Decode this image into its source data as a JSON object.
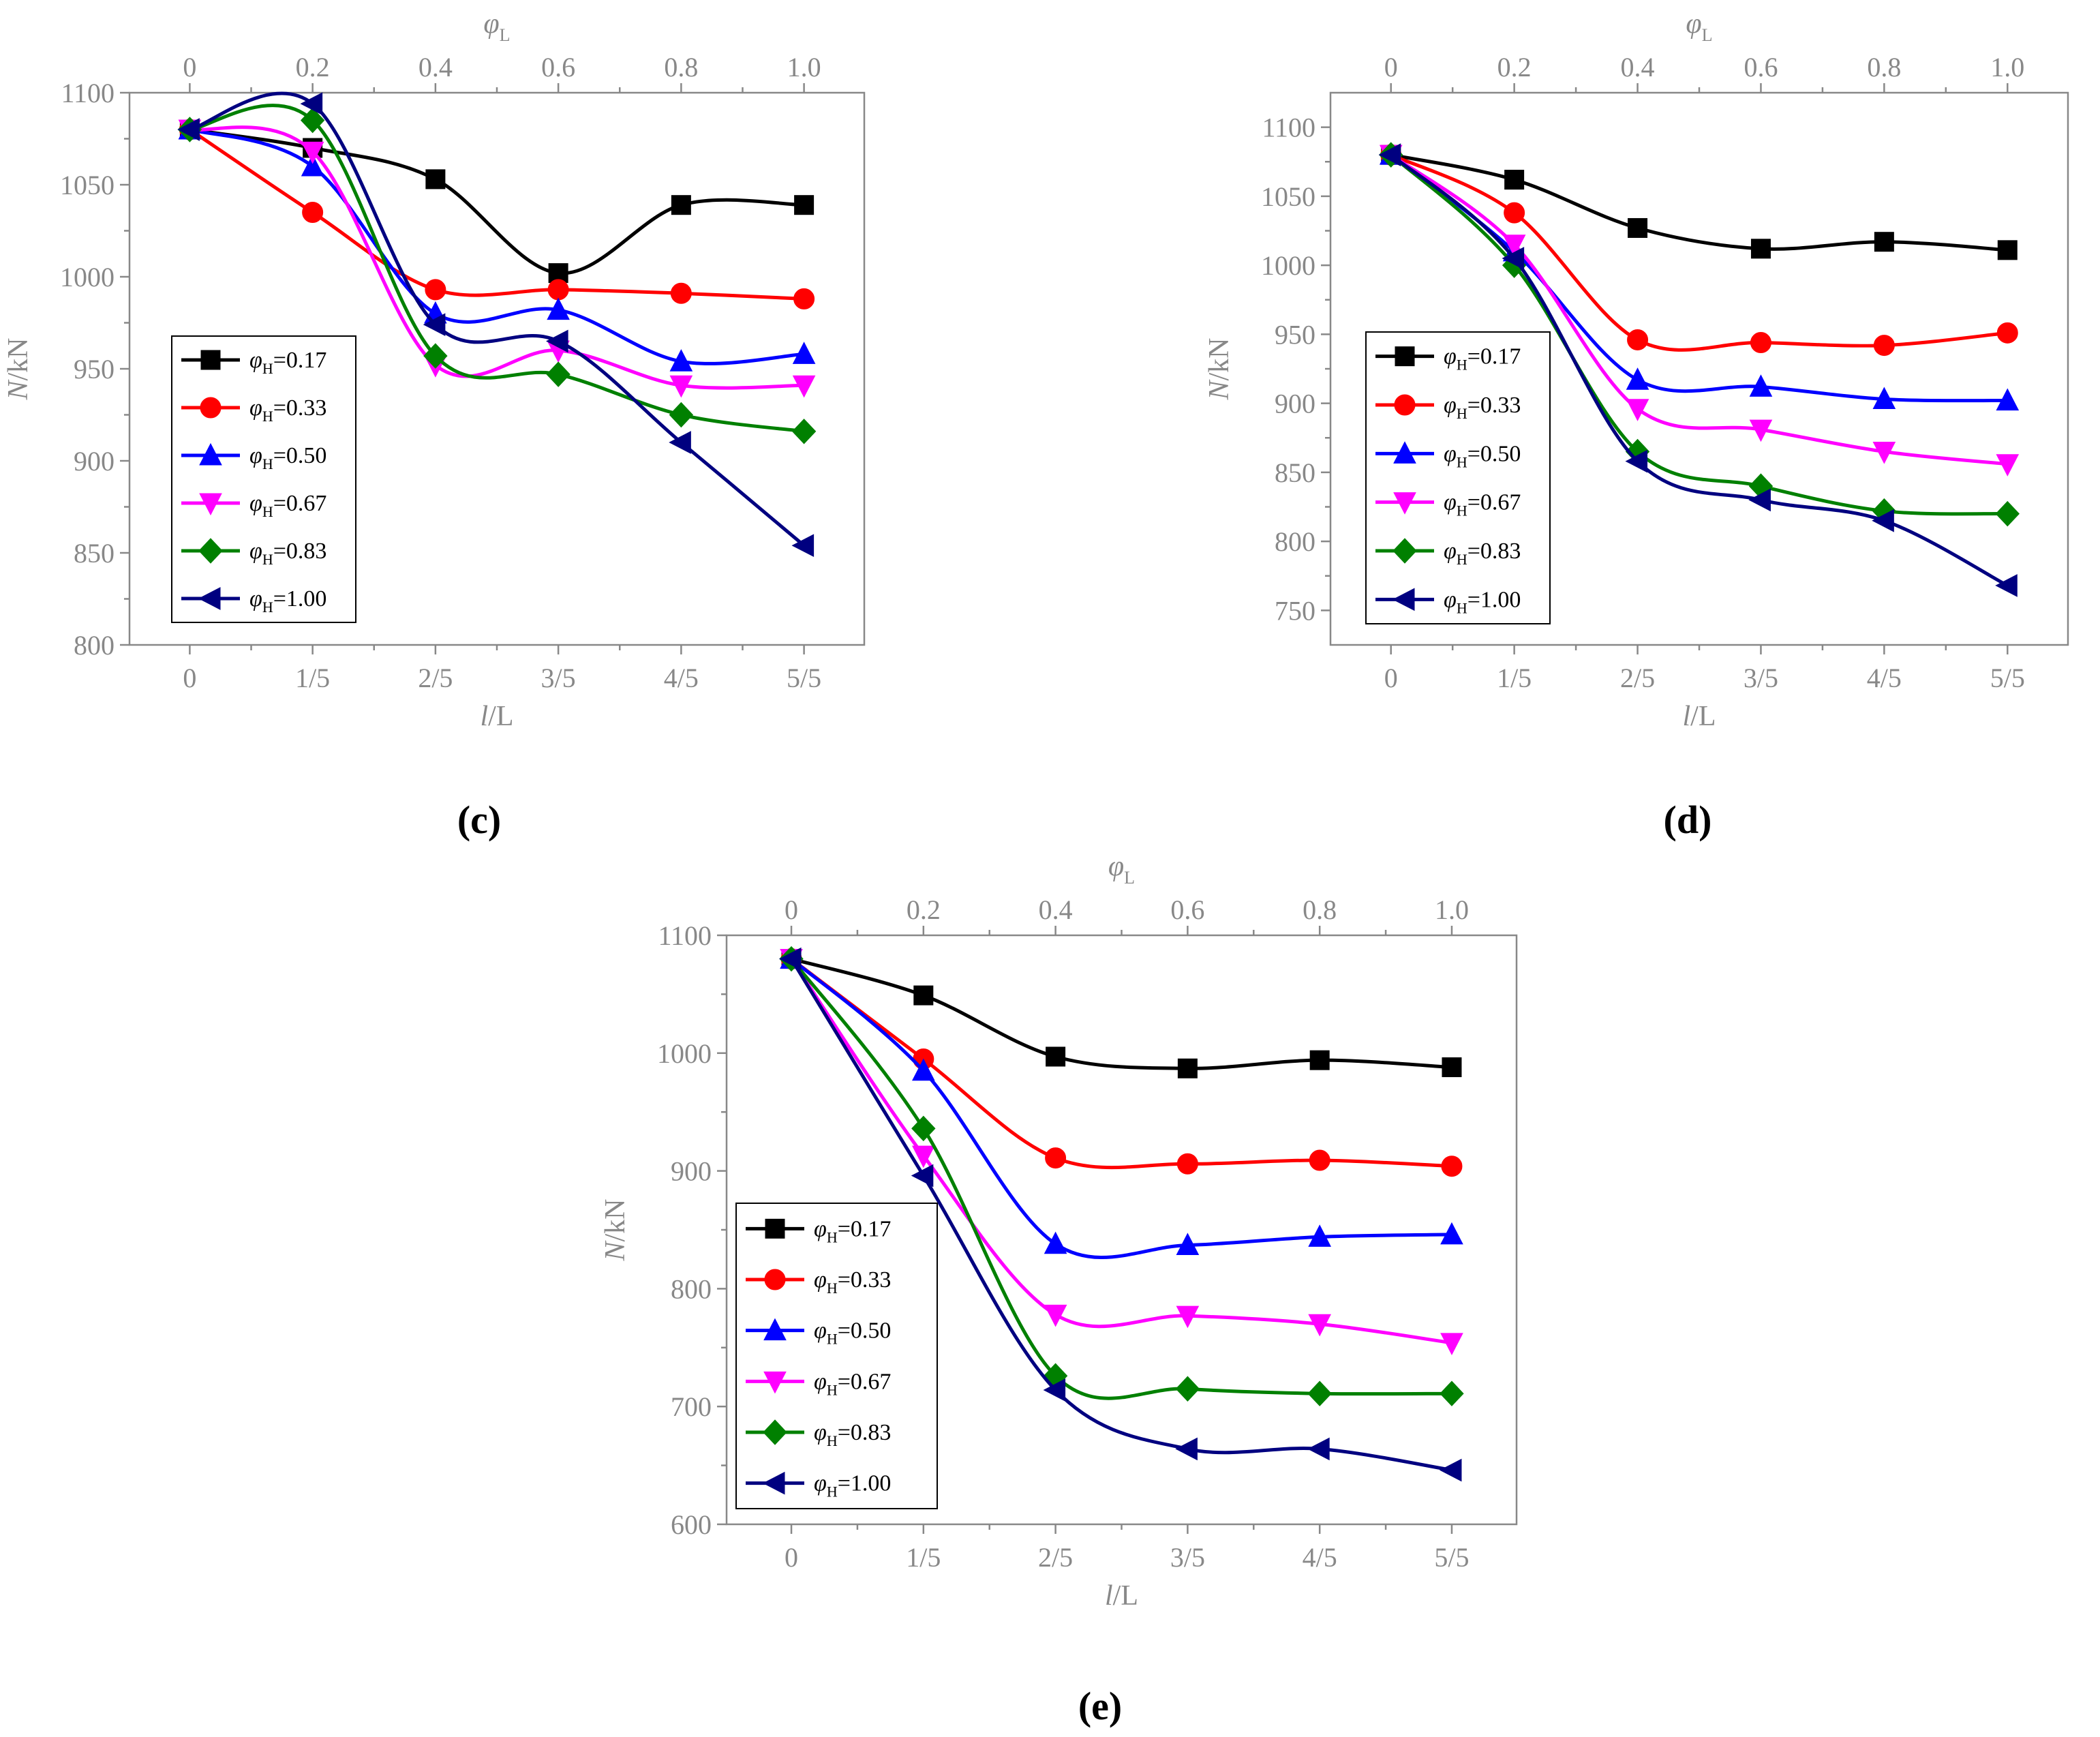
{
  "chart_data": [
    {
      "type": "line",
      "panel_label": "(c)",
      "categories": [
        "0",
        "1/5",
        "2/5",
        "3/5",
        "4/5",
        "5/5"
      ],
      "top_ticks": [
        "0",
        "0.2",
        "0.4",
        "0.6",
        "0.8",
        "1.0"
      ],
      "xlabel": {
        "italic": "l",
        "rest": "/L"
      },
      "top_label": {
        "sym": "φ",
        "sub": "L"
      },
      "ylabel": {
        "italic": "N",
        "rest": "/kN"
      },
      "ylim": [
        800,
        1100
      ],
      "yticks": [
        800,
        850,
        900,
        950,
        1000,
        1050,
        1100
      ],
      "series": [
        {
          "name": "φH=0.17",
          "sym": "φ",
          "sub": "H",
          "val": "=0.17",
          "color": "#000000",
          "marker": "square",
          "values": [
            1080,
            1070,
            1053,
            1002,
            1039,
            1039
          ]
        },
        {
          "name": "φH=0.33",
          "sym": "φ",
          "sub": "H",
          "val": "=0.33",
          "color": "#ff0000",
          "marker": "circle",
          "values": [
            1080,
            1035,
            993,
            993,
            991,
            988
          ]
        },
        {
          "name": "φH=0.50",
          "sym": "φ",
          "sub": "H",
          "val": "=0.50",
          "color": "#0000ff",
          "marker": "triangle-up",
          "values": [
            1080,
            1060,
            980,
            982,
            954,
            958
          ]
        },
        {
          "name": "φH=0.67",
          "sym": "φ",
          "sub": "H",
          "val": "=0.67",
          "color": "#ff00ff",
          "marker": "triangle-down",
          "values": [
            1080,
            1068,
            952,
            960,
            941,
            941
          ]
        },
        {
          "name": "φH=0.83",
          "sym": "φ",
          "sub": "H",
          "val": "=0.83",
          "color": "#008000",
          "marker": "diamond",
          "values": [
            1080,
            1085,
            957,
            947,
            925,
            916
          ]
        },
        {
          "name": "φH=1.00",
          "sym": "φ",
          "sub": "H",
          "val": "=1.00",
          "color": "#000080",
          "marker": "triangle-left",
          "values": [
            1080,
            1094,
            974,
            965,
            910,
            854
          ]
        }
      ]
    },
    {
      "type": "line",
      "panel_label": "(d)",
      "categories": [
        "0",
        "1/5",
        "2/5",
        "3/5",
        "4/5",
        "5/5"
      ],
      "top_ticks": [
        "0",
        "0.2",
        "0.4",
        "0.6",
        "0.8",
        "1.0"
      ],
      "xlabel": {
        "italic": "l",
        "rest": "/L"
      },
      "top_label": {
        "sym": "φ",
        "sub": "L"
      },
      "ylabel": {
        "italic": "N",
        "rest": "/kN"
      },
      "ylim": [
        725,
        1125
      ],
      "yticks": [
        750,
        800,
        850,
        900,
        950,
        1000,
        1050,
        1100
      ],
      "series": [
        {
          "name": "φH=0.17",
          "sym": "φ",
          "sub": "H",
          "val": "=0.17",
          "color": "#000000",
          "marker": "square",
          "values": [
            1080,
            1062,
            1027,
            1012,
            1017,
            1011
          ]
        },
        {
          "name": "φH=0.33",
          "sym": "φ",
          "sub": "H",
          "val": "=0.33",
          "color": "#ff0000",
          "marker": "circle",
          "values": [
            1080,
            1038,
            946,
            944,
            942,
            951
          ]
        },
        {
          "name": "φH=0.50",
          "sym": "φ",
          "sub": "H",
          "val": "=0.50",
          "color": "#0000ff",
          "marker": "triangle-up",
          "values": [
            1080,
            1010,
            917,
            912,
            903,
            902
          ]
        },
        {
          "name": "φH=0.67",
          "sym": "φ",
          "sub": "H",
          "val": "=0.67",
          "color": "#ff00ff",
          "marker": "triangle-down",
          "values": [
            1080,
            1015,
            896,
            881,
            865,
            856
          ]
        },
        {
          "name": "φH=0.83",
          "sym": "φ",
          "sub": "H",
          "val": "=0.83",
          "color": "#008000",
          "marker": "diamond",
          "values": [
            1080,
            1000,
            865,
            840,
            822,
            820
          ]
        },
        {
          "name": "φH=1.00",
          "sym": "φ",
          "sub": "H",
          "val": "=1.00",
          "color": "#000080",
          "marker": "triangle-left",
          "values": [
            1080,
            1005,
            858,
            830,
            815,
            768
          ]
        }
      ]
    },
    {
      "type": "line",
      "panel_label": "(e)",
      "categories": [
        "0",
        "1/5",
        "2/5",
        "3/5",
        "4/5",
        "5/5"
      ],
      "top_ticks": [
        "0",
        "0.2",
        "0.4",
        "0.6",
        "0.8",
        "1.0"
      ],
      "xlabel": {
        "italic": "l",
        "rest": "/L"
      },
      "top_label": {
        "sym": "φ",
        "sub": "L"
      },
      "ylabel": {
        "italic": "N",
        "rest": "/kN"
      },
      "ylim": [
        600,
        1100
      ],
      "yticks": [
        600,
        700,
        800,
        900,
        1000,
        1100
      ],
      "series": [
        {
          "name": "φH=0.17",
          "sym": "φ",
          "sub": "H",
          "val": "=0.17",
          "color": "#000000",
          "marker": "square",
          "values": [
            1080,
            1049,
            997,
            987,
            994,
            988
          ]
        },
        {
          "name": "φH=0.33",
          "sym": "φ",
          "sub": "H",
          "val": "=0.33",
          "color": "#ff0000",
          "marker": "circle",
          "values": [
            1080,
            995,
            911,
            906,
            909,
            904
          ]
        },
        {
          "name": "φH=0.50",
          "sym": "φ",
          "sub": "H",
          "val": "=0.50",
          "color": "#0000ff",
          "marker": "triangle-up",
          "values": [
            1080,
            985,
            838,
            837,
            844,
            846
          ]
        },
        {
          "name": "φH=0.67",
          "sym": "φ",
          "sub": "H",
          "val": "=0.67",
          "color": "#ff00ff",
          "marker": "triangle-down",
          "values": [
            1080,
            913,
            778,
            777,
            770,
            754
          ]
        },
        {
          "name": "φH=0.83",
          "sym": "φ",
          "sub": "H",
          "val": "=0.83",
          "color": "#008000",
          "marker": "diamond",
          "values": [
            1080,
            936,
            726,
            715,
            711,
            711
          ]
        },
        {
          "name": "φH=1.00",
          "sym": "φ",
          "sub": "H",
          "val": "=1.00",
          "color": "#000080",
          "marker": "triangle-left",
          "values": [
            1080,
            896,
            714,
            664,
            664,
            646
          ]
        }
      ]
    }
  ]
}
